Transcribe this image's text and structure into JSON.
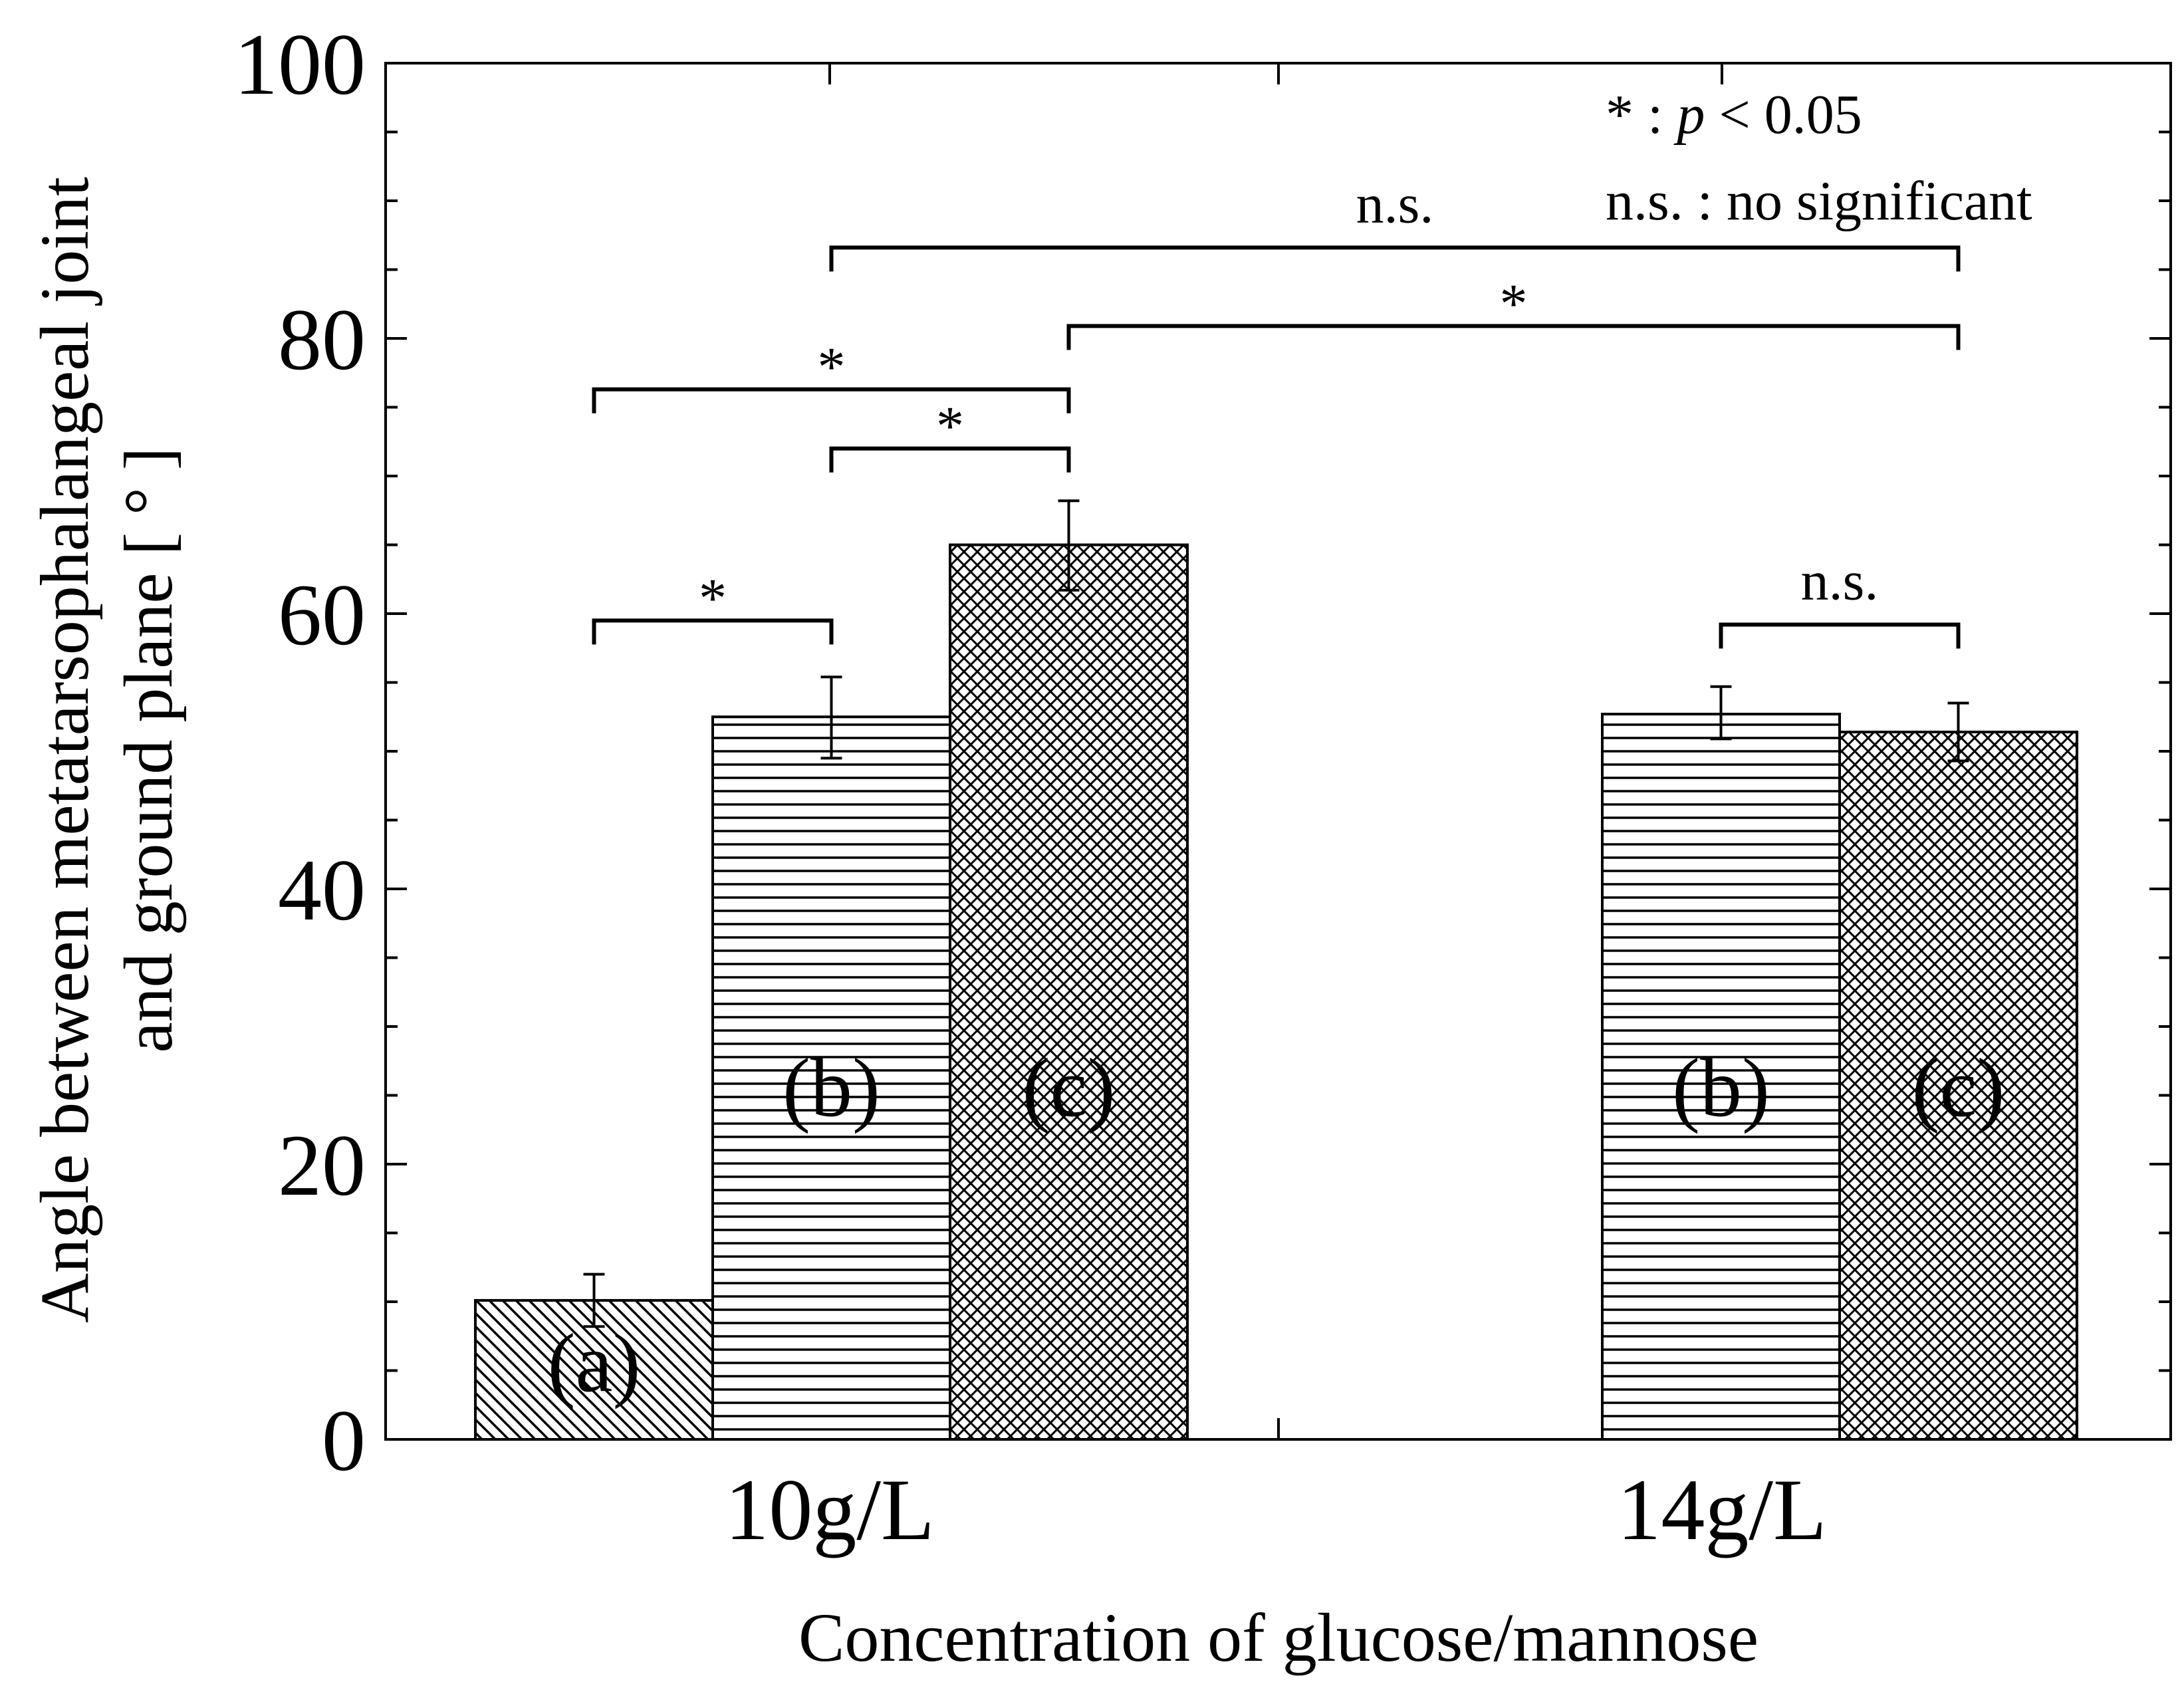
{
  "chart_data": {
    "type": "bar",
    "title": "",
    "xlabel": "Concentration of glucose/mannose",
    "ylabel_line1": "Angle between metatarsophalangeal joint",
    "ylabel_line2": "and ground plane [ ° ]",
    "ylim": [
      0,
      100
    ],
    "y_ticks": [
      "0",
      "20",
      "40",
      "60",
      "80",
      "100"
    ],
    "y_tick_values": [
      0,
      20,
      40,
      60,
      80,
      100
    ],
    "categories": [
      "10g/L",
      "14g/L"
    ],
    "bars": [
      {
        "group": "10g/L",
        "label": "(a)",
        "value": 10.1,
        "err_low": 1.9,
        "err_high": 1.9,
        "pattern": "diag"
      },
      {
        "group": "10g/L",
        "label": "(b)",
        "value": 52.5,
        "err_low": 3.0,
        "err_high": 2.9,
        "pattern": "horiz"
      },
      {
        "group": "10g/L",
        "label": "(c)",
        "value": 65.0,
        "err_low": 3.3,
        "err_high": 3.2,
        "pattern": "cross"
      },
      {
        "group": "14g/L",
        "label": "(b)",
        "value": 52.7,
        "err_low": 1.8,
        "err_high": 2.0,
        "pattern": "horiz"
      },
      {
        "group": "14g/L",
        "label": "(c)",
        "value": 51.4,
        "err_low": 2.1,
        "err_high": 2.1,
        "pattern": "cross"
      }
    ],
    "significance": [
      {
        "from": 0,
        "to": 1,
        "y": 59.5,
        "label": "*"
      },
      {
        "from": 1,
        "to": 2,
        "y": 72.0,
        "label": "*"
      },
      {
        "from": 0,
        "to": 2,
        "y": 76.3,
        "label": "*"
      },
      {
        "from": 2,
        "to": 4,
        "y": 80.9,
        "label": "*"
      },
      {
        "from": 1,
        "to": 4,
        "y": 86.6,
        "label": "n.s."
      },
      {
        "from": 3,
        "to": 4,
        "y": 59.2,
        "label": "n.s."
      }
    ],
    "legend": {
      "line1_prefix": "* : ",
      "line1_var": "p",
      "line1_suffix": " < 0.05",
      "line2": "n.s. : no significant"
    }
  }
}
